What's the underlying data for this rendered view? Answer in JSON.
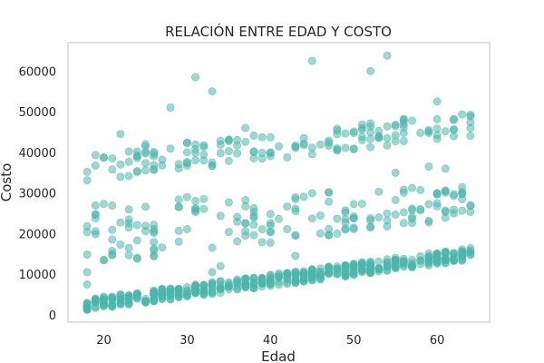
{
  "chart_data": {
    "type": "scatter",
    "title": "RELACIÓN ENTRE EDAD Y COSTO",
    "xlabel": "Edad",
    "ylabel": "Costo",
    "xlim": [
      15.7,
      66.3
    ],
    "ylim": [
      -1800,
      67000
    ],
    "xticks": [
      20,
      30,
      40,
      50,
      60
    ],
    "yticks": [
      0,
      10000,
      20000,
      30000,
      40000,
      50000,
      60000
    ],
    "grid": false,
    "marker_color": "#4db6ac",
    "marker_alpha": 0.55,
    "groups": {
      "low_band": {
        "x_range": [
          18,
          64
        ],
        "y_at_min_age": [
          1100,
          4000
        ],
        "y_at_max_age": [
          13500,
          16500
        ]
      },
      "mid_band": {
        "x_range": [
          18,
          64
        ],
        "y_at_min_age": [
          12000,
          28000
        ],
        "y_at_max_age": [
          24000,
          32000
        ]
      },
      "high_band": {
        "x_range": [
          18,
          64
        ],
        "y_at_min_age": [
          33000,
          40000
        ],
        "y_at_max_age": [
          44000,
          50000
        ]
      }
    },
    "notable_points": [
      {
        "x": 22,
        "y": 44500
      },
      {
        "x": 25,
        "y": 42000
      },
      {
        "x": 28,
        "y": 51000
      },
      {
        "x": 31,
        "y": 58500
      },
      {
        "x": 33,
        "y": 55000
      },
      {
        "x": 37,
        "y": 46000
      },
      {
        "x": 45,
        "y": 62500
      },
      {
        "x": 52,
        "y": 60000
      },
      {
        "x": 54,
        "y": 63800
      },
      {
        "x": 60,
        "y": 52500
      },
      {
        "x": 59,
        "y": 36500
      },
      {
        "x": 55,
        "y": 35000
      },
      {
        "x": 61,
        "y": 36000
      },
      {
        "x": 18,
        "y": 7500
      },
      {
        "x": 18,
        "y": 10500
      },
      {
        "x": 34,
        "y": 12000
      },
      {
        "x": 33,
        "y": 10500
      },
      {
        "x": 43,
        "y": 14500
      }
    ]
  }
}
